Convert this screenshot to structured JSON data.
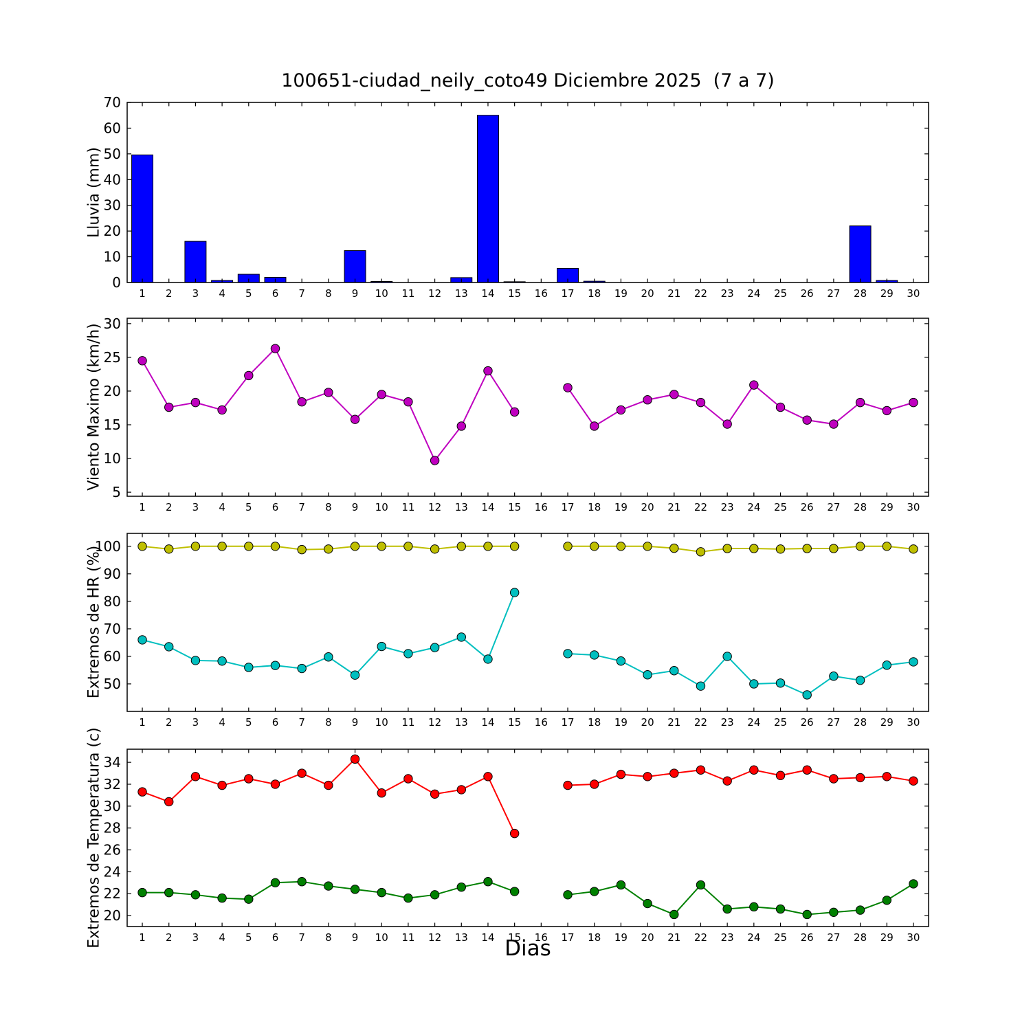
{
  "figure": {
    "title": "100651-ciudad_neily_coto49 Diciembre 2025  (7 a 7)",
    "xlabel": "Dias",
    "background": "#ffffff",
    "frame_color": "#000000"
  },
  "chart_data": [
    {
      "type": "bar",
      "title": "",
      "xlabel": "",
      "ylabel": "Lluvia (mm)",
      "ylim": [
        0,
        70
      ],
      "yticks": [
        0,
        10,
        20,
        30,
        40,
        50,
        60,
        70
      ],
      "grid": "off",
      "legend": "none",
      "categories": [
        1,
        2,
        3,
        4,
        5,
        6,
        7,
        8,
        9,
        10,
        11,
        12,
        13,
        14,
        15,
        16,
        17,
        18,
        19,
        20,
        21,
        22,
        23,
        24,
        25,
        26,
        27,
        28,
        29,
        30
      ],
      "bar_width": 0.8,
      "series": [
        {
          "name": "lluvia-mm",
          "color": "#0000ff",
          "values": [
            49.6,
            0,
            16,
            0.8,
            3.2,
            2,
            0,
            0,
            12.4,
            0.4,
            0,
            0,
            1.9,
            65,
            0.3,
            0,
            5.5,
            0.5,
            0,
            0,
            0,
            0,
            0,
            0,
            0,
            0,
            0,
            22,
            0.8,
            0
          ]
        }
      ]
    },
    {
      "type": "line",
      "title": "",
      "xlabel": "",
      "ylabel": "Viento Maximo (km/h)",
      "ylim": [
        4.4,
        30.8
      ],
      "yticks": [
        5,
        10,
        15,
        20,
        25,
        30
      ],
      "grid": "off",
      "legend": "none",
      "categories": [
        1,
        2,
        3,
        4,
        5,
        6,
        7,
        8,
        9,
        10,
        11,
        12,
        13,
        14,
        15,
        16,
        17,
        18,
        19,
        20,
        21,
        22,
        23,
        24,
        25,
        26,
        27,
        28,
        29,
        30
      ],
      "series": [
        {
          "name": "viento-maximo",
          "color": "#bf00bf",
          "values": [
            24.5,
            17.6,
            18.3,
            17.2,
            22.3,
            26.3,
            18.4,
            19.8,
            15.8,
            19.5,
            18.4,
            9.7,
            14.8,
            23,
            16.9,
            null,
            20.5,
            14.8,
            17.2,
            18.7,
            19.5,
            18.3,
            15.1,
            20.9,
            17.6,
            15.7,
            15.1,
            18.3,
            17.1,
            18.3
          ]
        }
      ]
    },
    {
      "type": "line",
      "title": "",
      "xlabel": "",
      "ylabel": "Extremos de HR (%)",
      "ylim": [
        40,
        104.7
      ],
      "yticks": [
        50,
        60,
        70,
        80,
        90,
        100
      ],
      "grid": "off",
      "legend": "none",
      "categories": [
        1,
        2,
        3,
        4,
        5,
        6,
        7,
        8,
        9,
        10,
        11,
        12,
        13,
        14,
        15,
        16,
        17,
        18,
        19,
        20,
        21,
        22,
        23,
        24,
        25,
        26,
        27,
        28,
        29,
        30
      ],
      "series": [
        {
          "name": "hr-maxima",
          "color": "#bfbf00",
          "values": [
            100,
            99,
            100,
            100,
            100,
            100,
            98.8,
            99,
            100,
            100,
            100,
            99,
            100,
            100,
            100,
            null,
            100,
            100,
            100,
            100,
            99.3,
            98,
            99.2,
            99.2,
            99,
            99.2,
            99.2,
            100,
            100,
            99
          ]
        },
        {
          "name": "hr-minima",
          "color": "#00bfbf",
          "values": [
            66,
            63.5,
            58.5,
            58.3,
            56,
            56.7,
            55.6,
            59.8,
            53.2,
            63.6,
            61,
            63.2,
            67,
            59,
            83.2,
            null,
            61,
            60.5,
            58.3,
            53.3,
            54.8,
            49.2,
            60,
            50,
            50.3,
            46,
            52.8,
            51.3,
            56.8,
            58
          ]
        }
      ]
    },
    {
      "type": "line",
      "title": "",
      "xlabel": "Dias",
      "ylabel": "Extremos de Temperatura (c)",
      "ylim": [
        19,
        35.2
      ],
      "yticks": [
        20,
        22,
        24,
        26,
        28,
        30,
        32,
        34
      ],
      "grid": "off",
      "legend": "none",
      "categories": [
        1,
        2,
        3,
        4,
        5,
        6,
        7,
        8,
        9,
        10,
        11,
        12,
        13,
        14,
        15,
        16,
        17,
        18,
        19,
        20,
        21,
        22,
        23,
        24,
        25,
        26,
        27,
        28,
        29,
        30
      ],
      "series": [
        {
          "name": "temperatura-maxima",
          "color": "#ff0000",
          "values": [
            31.3,
            30.4,
            32.7,
            31.9,
            32.5,
            32,
            33,
            31.9,
            34.3,
            31.2,
            32.5,
            31.1,
            31.5,
            32.7,
            27.5,
            null,
            31.9,
            32,
            32.9,
            32.7,
            33,
            33.3,
            32.3,
            33.3,
            32.8,
            33.3,
            32.5,
            32.6,
            32.7,
            32.3
          ]
        },
        {
          "name": "temperatura-minima",
          "color": "#008000",
          "values": [
            22.1,
            22.1,
            21.9,
            21.6,
            21.5,
            23,
            23.1,
            22.7,
            22.4,
            22.1,
            21.6,
            21.9,
            22.6,
            23.1,
            22.2,
            null,
            21.9,
            22.2,
            22.8,
            21.1,
            20.1,
            22.8,
            20.6,
            20.8,
            20.6,
            20.1,
            20.3,
            20.5,
            21.4,
            22.9
          ]
        }
      ]
    }
  ]
}
